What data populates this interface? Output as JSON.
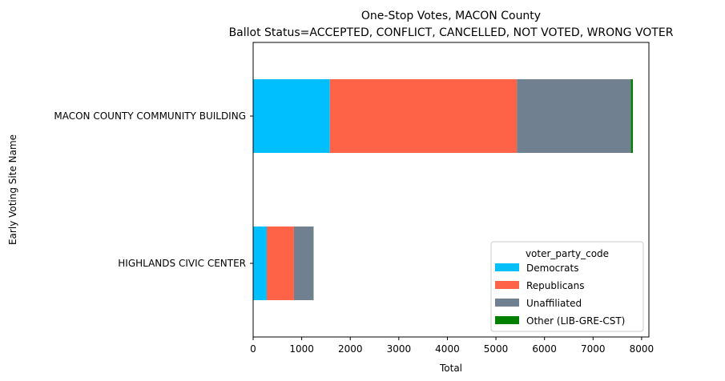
{
  "chart_data": {
    "type": "bar",
    "orientation": "horizontal",
    "stacked": true,
    "title": "One-Stop Votes, MACON County",
    "subtitle": "Ballot Status=ACCEPTED, CONFLICT, CANCELLED, NOT VOTED, WRONG VOTER",
    "xlabel": "Total",
    "ylabel": "Early Voting Site Name",
    "xlim": [
      0,
      8150
    ],
    "xticks": [
      0,
      1000,
      2000,
      3000,
      4000,
      5000,
      6000,
      7000,
      8000
    ],
    "categories": [
      "HIGHLANDS CIVIC CENTER",
      "MACON COUNTY COMMUNITY BUILDING"
    ],
    "series": [
      {
        "name": "Democrats",
        "color": "#00bfff",
        "values": [
          280,
          1580
        ]
      },
      {
        "name": "Republicans",
        "color": "#ff6347",
        "values": [
          560,
          3850
        ]
      },
      {
        "name": "Unaffiliated",
        "color": "#708090",
        "values": [
          400,
          2350
        ]
      },
      {
        "name": "Other (LIB-GRE-CST)",
        "color": "#008000",
        "values": [
          5,
          40
        ]
      }
    ],
    "legend": {
      "title": "voter_party_code",
      "position": "lower-right"
    },
    "grid": false
  }
}
